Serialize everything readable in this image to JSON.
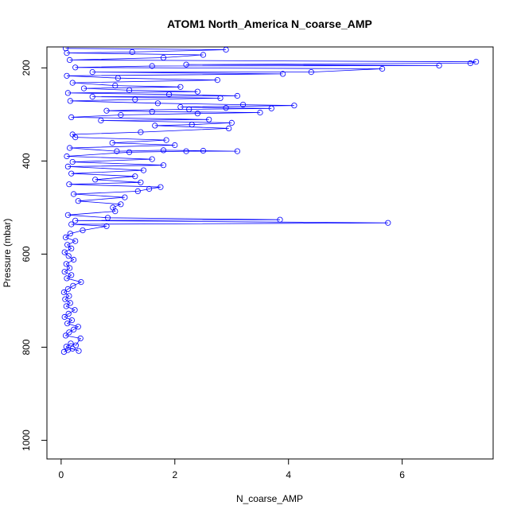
{
  "chart_data": {
    "type": "line",
    "title": "ATOM1 North_America N_coarse_AMP",
    "xlabel": "N_coarse_AMP",
    "ylabel": "Pressure (mbar)",
    "xlim": [
      -0.25,
      7.6
    ],
    "ylim": [
      1040,
      155
    ],
    "y_axis_inverted": true,
    "grid": false,
    "x_ticks": [
      0,
      2,
      4,
      6
    ],
    "y_ticks": [
      200,
      400,
      600,
      800,
      1000
    ],
    "series_color": "#0000ff",
    "marker": "open-circle",
    "series": [
      {
        "points": [
          [
            0.05,
            810
          ],
          [
            0.12,
            806
          ],
          [
            0.2,
            803
          ],
          [
            0.31,
            808
          ],
          [
            0.09,
            799
          ],
          [
            0.17,
            792
          ],
          [
            0.26,
            796
          ],
          [
            0.34,
            781
          ],
          [
            0.08,
            775
          ],
          [
            0.14,
            768
          ],
          [
            0.22,
            762
          ],
          [
            0.3,
            756
          ],
          [
            0.11,
            749
          ],
          [
            0.19,
            742
          ],
          [
            0.06,
            735
          ],
          [
            0.13,
            728
          ],
          [
            0.24,
            720
          ],
          [
            0.09,
            712
          ],
          [
            0.16,
            705
          ],
          [
            0.07,
            697
          ],
          [
            0.14,
            690
          ],
          [
            0.05,
            682
          ],
          [
            0.12,
            675
          ],
          [
            0.21,
            668
          ],
          [
            0.35,
            660
          ],
          [
            0.1,
            652
          ],
          [
            0.18,
            645
          ],
          [
            0.06,
            638
          ],
          [
            0.15,
            630
          ],
          [
            0.09,
            621
          ],
          [
            0.22,
            612
          ],
          [
            0.13,
            604
          ],
          [
            0.06,
            596
          ],
          [
            0.18,
            588
          ],
          [
            0.11,
            580
          ],
          [
            0.25,
            572
          ],
          [
            0.08,
            564
          ],
          [
            0.16,
            556
          ],
          [
            0.38,
            549
          ],
          [
            0.8,
            540
          ],
          [
            0.18,
            536
          ],
          [
            5.75,
            533
          ],
          [
            0.25,
            528
          ],
          [
            3.85,
            526
          ],
          [
            0.82,
            522
          ],
          [
            0.12,
            516
          ],
          [
            0.95,
            508
          ],
          [
            0.91,
            500
          ],
          [
            1.05,
            493
          ],
          [
            0.3,
            486
          ],
          [
            1.12,
            478
          ],
          [
            0.22,
            471
          ],
          [
            1.35,
            465
          ],
          [
            1.55,
            460
          ],
          [
            1.75,
            456
          ],
          [
            0.14,
            450
          ],
          [
            1.4,
            446
          ],
          [
            0.6,
            440
          ],
          [
            1.3,
            433
          ],
          [
            0.18,
            427
          ],
          [
            1.45,
            420
          ],
          [
            0.12,
            412
          ],
          [
            1.8,
            409
          ],
          [
            0.2,
            402
          ],
          [
            1.6,
            396
          ],
          [
            0.1,
            390
          ],
          [
            1.2,
            381
          ],
          [
            2.2,
            379
          ],
          [
            3.1,
            379
          ],
          [
            2.5,
            378
          ],
          [
            1.8,
            377
          ],
          [
            0.98,
            379
          ],
          [
            0.15,
            372
          ],
          [
            2.0,
            366
          ],
          [
            0.9,
            361
          ],
          [
            1.85,
            355
          ],
          [
            0.25,
            349
          ],
          [
            0.2,
            343
          ],
          [
            1.4,
            338
          ],
          [
            2.95,
            330
          ],
          [
            1.65,
            324
          ],
          [
            2.3,
            322
          ],
          [
            3.0,
            318
          ],
          [
            0.7,
            313
          ],
          [
            2.6,
            311
          ],
          [
            0.18,
            306
          ],
          [
            1.05,
            301
          ],
          [
            2.4,
            298
          ],
          [
            3.5,
            296
          ],
          [
            1.6,
            294
          ],
          [
            0.8,
            292
          ],
          [
            2.25,
            289
          ],
          [
            3.7,
            287
          ],
          [
            2.9,
            286
          ],
          [
            2.1,
            284
          ],
          [
            4.1,
            281
          ],
          [
            3.2,
            279
          ],
          [
            1.7,
            276
          ],
          [
            0.16,
            271
          ],
          [
            1.3,
            268
          ],
          [
            2.8,
            265
          ],
          [
            0.55,
            262
          ],
          [
            3.1,
            260
          ],
          [
            1.9,
            257
          ],
          [
            0.12,
            254
          ],
          [
            2.4,
            251
          ],
          [
            1.2,
            248
          ],
          [
            0.4,
            244
          ],
          [
            2.1,
            241
          ],
          [
            0.95,
            238
          ],
          [
            0.2,
            232
          ],
          [
            2.75,
            226
          ],
          [
            1.0,
            222
          ],
          [
            0.1,
            217
          ],
          [
            3.9,
            213
          ],
          [
            0.55,
            209
          ],
          [
            4.4,
            209
          ],
          [
            5.65,
            202
          ],
          [
            0.25,
            199
          ],
          [
            1.6,
            196
          ],
          [
            6.65,
            195
          ],
          [
            2.2,
            193
          ],
          [
            7.2,
            190
          ],
          [
            7.3,
            187
          ],
          [
            0.15,
            183
          ],
          [
            1.8,
            178
          ],
          [
            2.5,
            172
          ],
          [
            0.1,
            168
          ],
          [
            1.25,
            166
          ],
          [
            2.9,
            161
          ],
          [
            0.08,
            158
          ]
        ]
      }
    ]
  }
}
